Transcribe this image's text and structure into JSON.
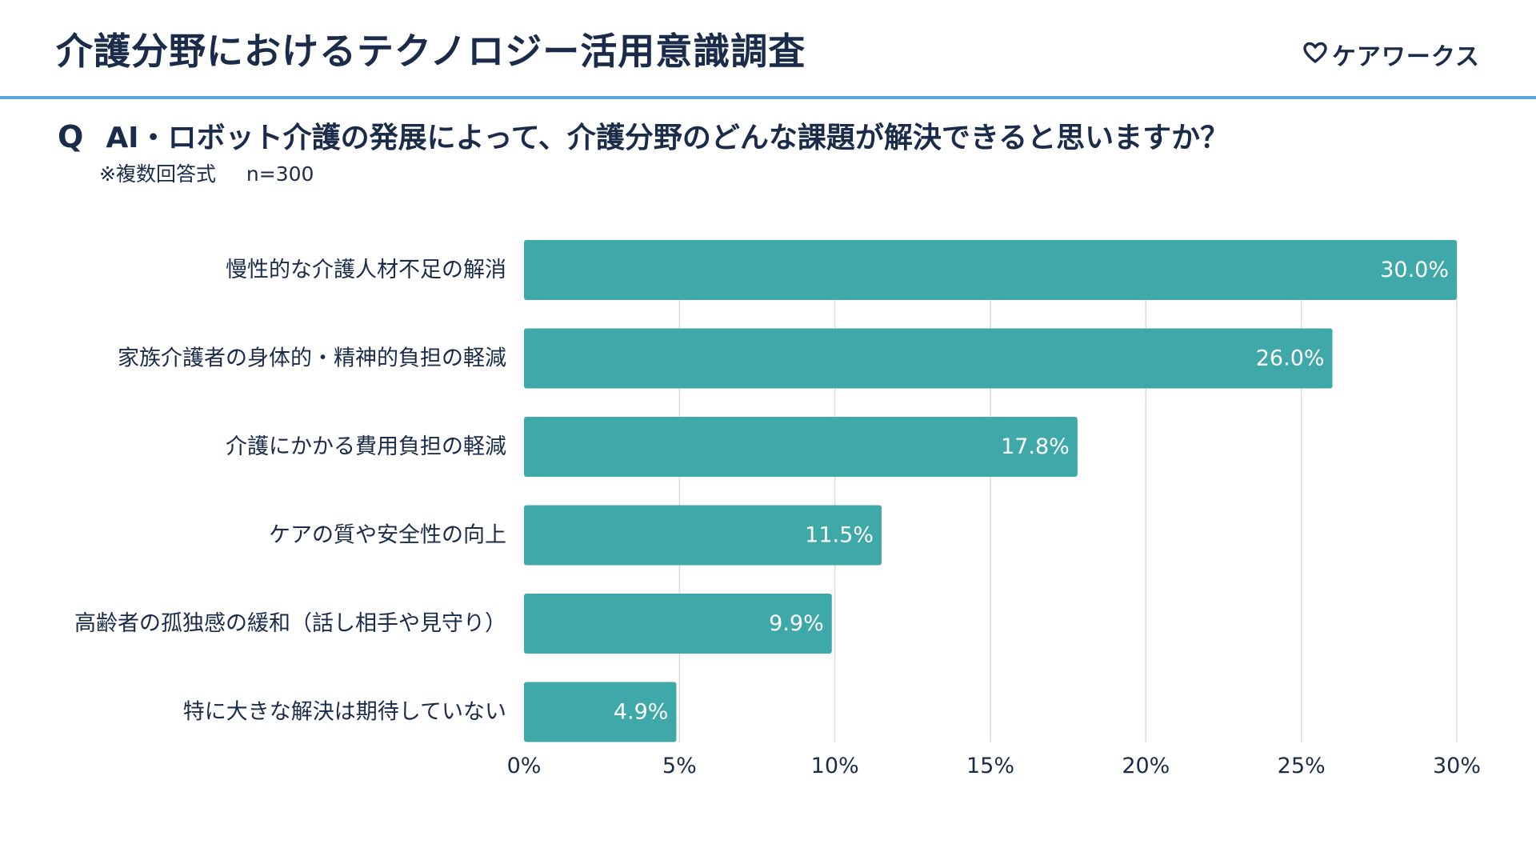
{
  "header": {
    "title": "介護分野におけるテクノロジー活用意識調査",
    "brand": {
      "name": "ケアワークス",
      "icon": "heart-outline-icon"
    }
  },
  "question": {
    "mark": "Q",
    "text": "AI・ロボット介護の発展によって、介護分野のどんな課題が解決できると思いますか？",
    "note": "※複数回答式",
    "sample": "n=300"
  },
  "colors": {
    "bar": "#3fa8a8",
    "text": "#1b2b4a",
    "accent_rule": "#5aa7e0",
    "grid": "#dcdcdc"
  },
  "chart_data": {
    "type": "bar",
    "orientation": "horizontal",
    "categories": [
      "慢性的な介護人材不足の解消",
      "家族介護者の身体的・精神的負担の軽減",
      "介護にかかる費用負担の軽減",
      "ケアの質や安全性の向上",
      "高齢者の孤独感の緩和（話し相手や見守り）",
      "特に大きな解決は期待していない"
    ],
    "values": [
      30.0,
      26.0,
      17.8,
      11.5,
      9.9,
      4.9
    ],
    "value_labels": [
      "30.0%",
      "26.0%",
      "17.8%",
      "11.5%",
      "9.9%",
      "4.9%"
    ],
    "xlim": [
      0,
      30
    ],
    "ticks": [
      "0%",
      "5%",
      "10%",
      "15%",
      "20%",
      "25%",
      "30%"
    ],
    "tick_values": [
      0,
      5,
      10,
      15,
      20,
      25,
      30
    ],
    "grid": true,
    "unit": "%"
  }
}
